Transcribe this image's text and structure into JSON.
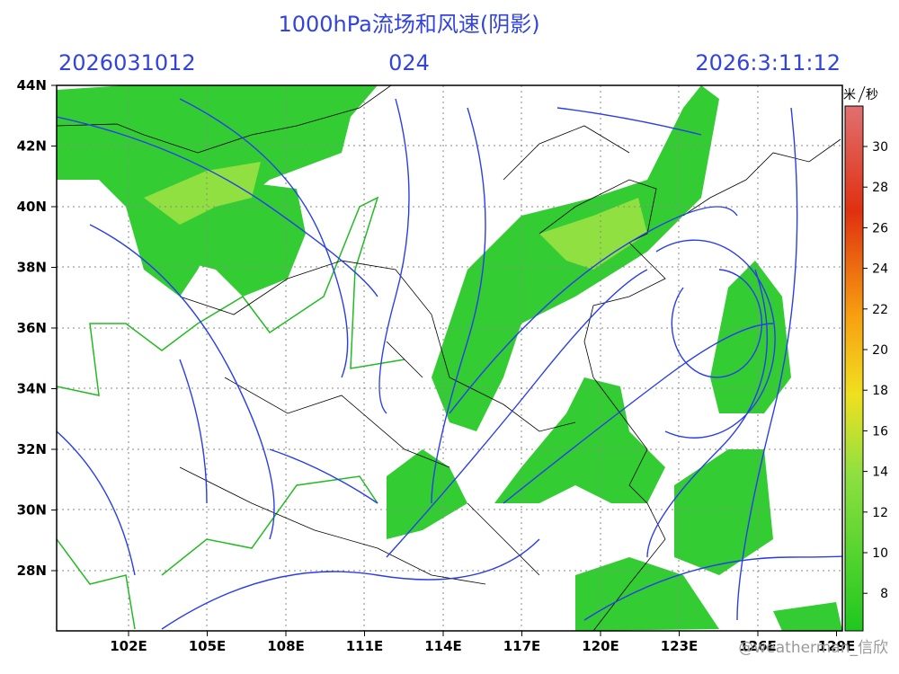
{
  "header": {
    "title": "1000hPa流场和风速(阴影)",
    "init_time": "2026031012",
    "lead": "024",
    "valid_time": "2026:3:11:12"
  },
  "axes": {
    "y_labels": [
      "44N",
      "42N",
      "40N",
      "38N",
      "36N",
      "34N",
      "32N",
      "30N",
      "28N"
    ],
    "x_labels": [
      "102E",
      "105E",
      "108E",
      "111E",
      "114E",
      "117E",
      "120E",
      "123E",
      "126E",
      "129E"
    ]
  },
  "colorbar": {
    "unit_left": "米",
    "unit_right": "秒",
    "labels": [
      "30",
      "28",
      "26",
      "24",
      "22",
      "20",
      "18",
      "16",
      "14",
      "12",
      "10",
      "8"
    ]
  },
  "watermark": "@weatherman_信欣"
}
